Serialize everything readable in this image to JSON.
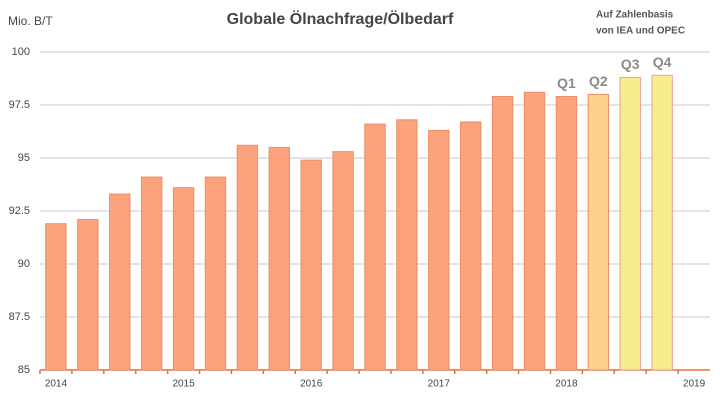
{
  "chart_data": {
    "type": "bar",
    "title": "Globale Ölnachfrage/Ölbedarf",
    "y_unit_label": "Mio. B/T",
    "note": [
      "Auf Zahlenbasis",
      "von IEA und OPEC"
    ],
    "categories": [
      "2014",
      null,
      null,
      null,
      "2015",
      null,
      null,
      null,
      "2016",
      null,
      null,
      null,
      "2017",
      null,
      null,
      null,
      "2018",
      null,
      null,
      null,
      "2019"
    ],
    "values": [
      91.9,
      92.1,
      93.3,
      94.1,
      93.6,
      94.1,
      95.6,
      95.5,
      94.9,
      95.3,
      96.6,
      96.8,
      96.3,
      96.7,
      97.9,
      98.1,
      97.9,
      98.0,
      98.8,
      98.9,
      null
    ],
    "colors": [
      "#fca27c",
      "#fca27c",
      "#fca27c",
      "#fca27c",
      "#fca27c",
      "#fca27c",
      "#fca27c",
      "#fca27c",
      "#fca27c",
      "#fca27c",
      "#fca27c",
      "#fca27c",
      "#fca27c",
      "#fca27c",
      "#fca27c",
      "#fca27c",
      "#fca27c",
      "#fdd08c",
      "#f5ec8c",
      "#f5ec8c",
      null
    ],
    "annotations": [
      null,
      null,
      null,
      null,
      null,
      null,
      null,
      null,
      null,
      null,
      null,
      null,
      null,
      null,
      null,
      null,
      "Q1",
      "Q2",
      "Q3",
      "Q4",
      null
    ],
    "ylim": [
      85,
      100
    ],
    "yticks": [
      85,
      87.5,
      90,
      92.5,
      95,
      97.5,
      100
    ],
    "grid": true
  }
}
